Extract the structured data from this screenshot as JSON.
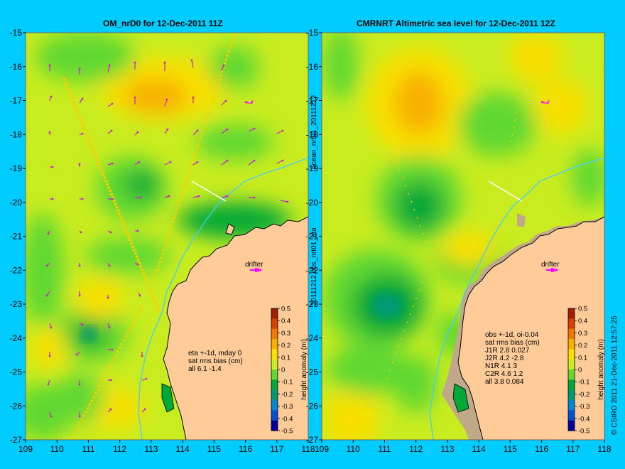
{
  "left_panel": {
    "title": "OM_nrD0 for 12-Dec-2011 11Z",
    "stats": [
      "eta +-1d, mday 0",
      "sat rms bias (cm)",
      "all 6.1 -1.4"
    ],
    "drifter_label": "drifter"
  },
  "right_panel": {
    "title": "CMRNRT Altimetric sea level  for 12-Dec-2011 12Z",
    "stats": [
      "obs +-1d, oi-0.04",
      "sat rms bias (cm)",
      "J1R   2.8 0.027",
      "J2R   4.2 -2.8",
      "N1R   4.1 3",
      "C2R   4.6 1.2",
      "all 3.8 0.084"
    ],
    "drifter_label": "drifter"
  },
  "axes": {
    "x_ticks": [
      "109",
      "110",
      "111",
      "112",
      "113",
      "114",
      "115",
      "116",
      "117",
      "118"
    ],
    "y_ticks": [
      "-15",
      "-16",
      "-17",
      "-18",
      "-19",
      "-20",
      "-21",
      "-22",
      "-23",
      "-24",
      "-25",
      "-26",
      "-27"
    ]
  },
  "colorbar": {
    "label": "height anomaly (m)",
    "ticks": [
      "0.5",
      "0.4",
      "0.3",
      "0.2",
      "0.1",
      "0",
      "-0.1",
      "-0.2",
      "-0.3",
      "-0.4",
      "-0.5"
    ],
    "colors": [
      "#a02000",
      "#d84000",
      "#f07800",
      "#f8b000",
      "#f8e000",
      "#c8ec20",
      "#60d830",
      "#00a838",
      "#009878",
      "#0088d0",
      "#0050d8",
      "#0000a0"
    ]
  },
  "side_labels": {
    "vertical_left": "20111212.obs_nrt01_eta",
    "vertical_left2": "ocean_nrt01_20111212",
    "copyright": "© CSIRO 2011  21-Dec-2011 12:57:25"
  },
  "colors": {
    "background": "#00ccff",
    "land": "#ffcc99",
    "coast_shelf": "#c0a888",
    "contour": "#44ccff",
    "vector": "#cc22cc",
    "drifter": "#ff00ff"
  }
}
